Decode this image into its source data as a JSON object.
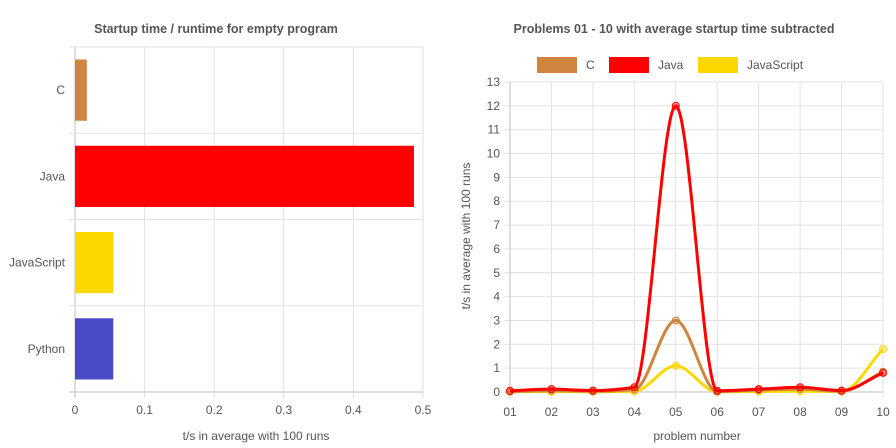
{
  "chart_data": [
    {
      "type": "bar",
      "orientation": "horizontal",
      "title": "Startup time / runtime for empty program",
      "xlabel": "t/s in average with 100 runs",
      "ylabel": "",
      "categories": [
        "C",
        "Java",
        "JavaScript",
        "Python"
      ],
      "values": [
        0.017,
        0.487,
        0.055,
        0.055
      ],
      "colors": [
        "#CD853F",
        "#FF0000",
        "#FFD700",
        "#4B4BC8"
      ],
      "xlim": [
        0,
        0.5
      ],
      "xticks": [
        "0",
        "0.1",
        "0.2",
        "0.3",
        "0.4",
        "0.5"
      ],
      "grid": true,
      "legend": "none"
    },
    {
      "type": "line",
      "title": "Problems 01 - 10 with average startup time subtracted",
      "xlabel": "problem number",
      "ylabel": "t/s in average with 100 runs",
      "categories": [
        "01",
        "02",
        "03",
        "04",
        "05",
        "06",
        "07",
        "08",
        "09",
        "10"
      ],
      "ylim": [
        0,
        13
      ],
      "yticks": [
        "0",
        "1",
        "2",
        "3",
        "4",
        "5",
        "6",
        "7",
        "8",
        "9",
        "10",
        "11",
        "12",
        "13"
      ],
      "grid": true,
      "legend": "top",
      "series": [
        {
          "name": "C",
          "color": "#CD853F",
          "values": [
            0.02,
            0.05,
            0.03,
            0.1,
            3.0,
            0.02,
            0.08,
            0.12,
            0.03,
            0.85
          ]
        },
        {
          "name": "Java",
          "color": "#FF0000",
          "values": [
            0.05,
            0.12,
            0.06,
            0.2,
            12.0,
            0.05,
            0.12,
            0.2,
            0.06,
            0.8
          ]
        },
        {
          "name": "JavaScript",
          "color": "#FFD700",
          "values": [
            0.01,
            0.02,
            0.01,
            0.03,
            1.1,
            0.01,
            0.02,
            0.03,
            0.02,
            1.8
          ]
        }
      ]
    }
  ]
}
